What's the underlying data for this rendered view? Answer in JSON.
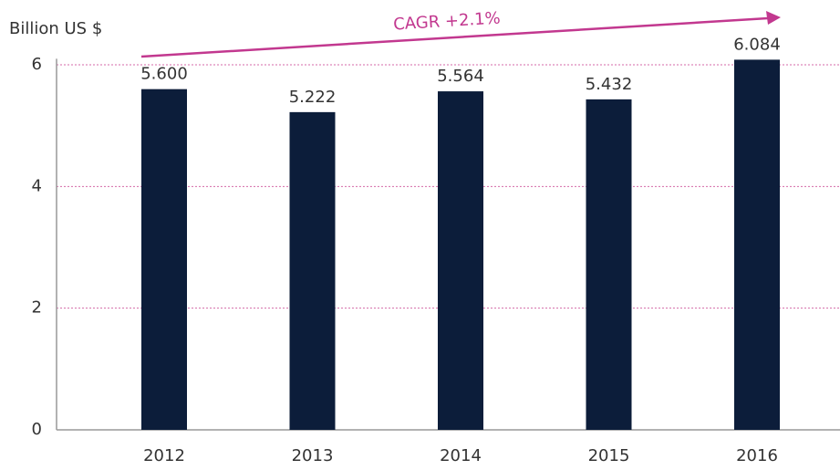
{
  "chart_data": {
    "type": "bar",
    "y_axis_label": "Billion US $",
    "annotation": "CAGR +2.1%",
    "categories": [
      "2012",
      "2013",
      "2014",
      "2015",
      "2016"
    ],
    "values": [
      5.6,
      5.222,
      5.564,
      5.432,
      6.084
    ],
    "value_labels": [
      "5.600",
      "5.222",
      "5.564",
      "5.432",
      "6.084"
    ],
    "color": "#0c1d3a",
    "ylim": [
      0,
      6.1
    ],
    "yticks": [
      0,
      2,
      4,
      6
    ],
    "grid": true,
    "annotation_color": "#c2388f"
  }
}
